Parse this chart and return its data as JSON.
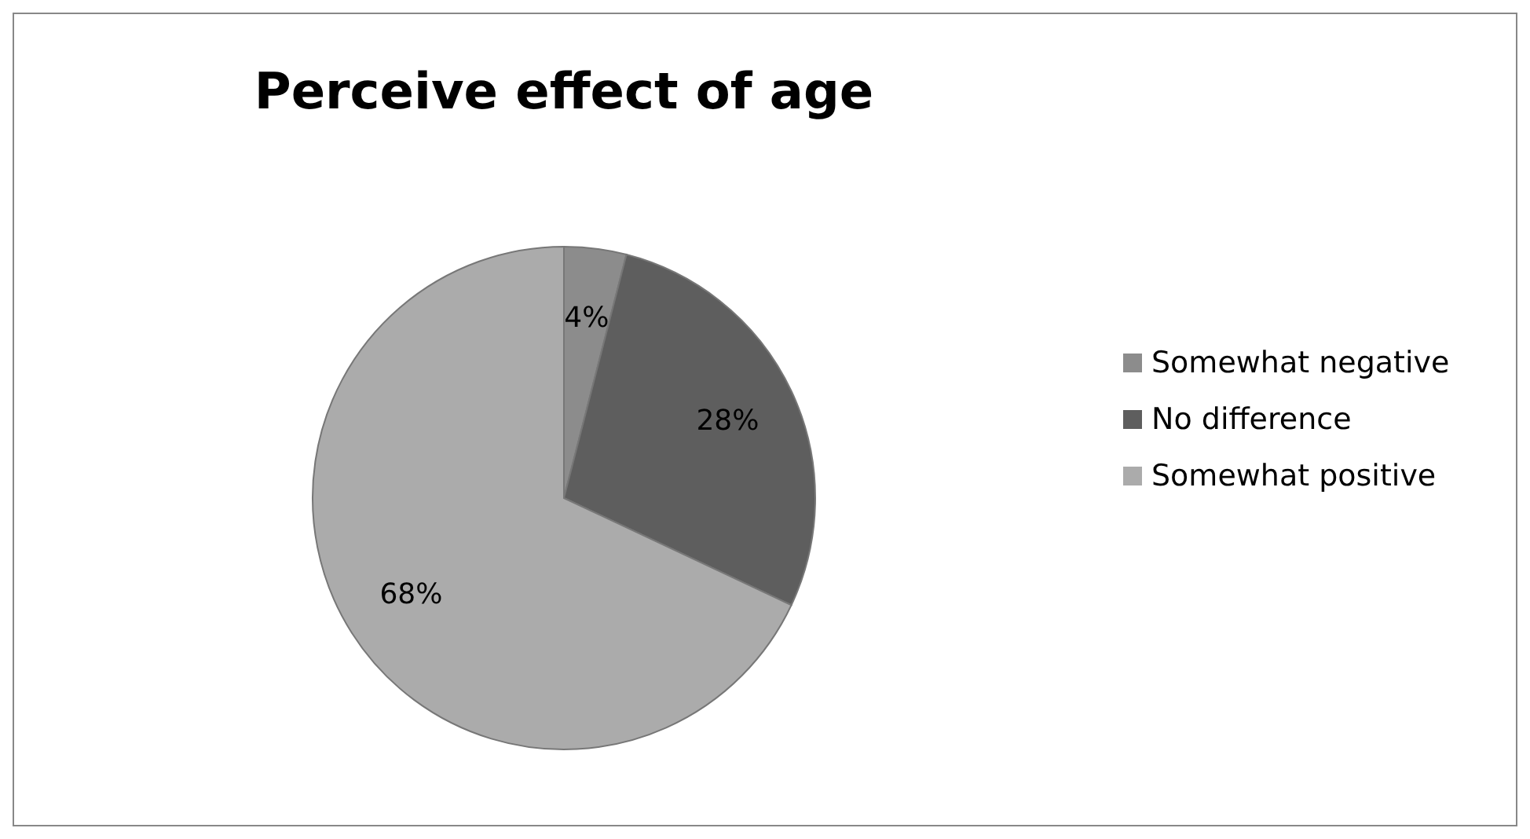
{
  "chart_data": {
    "type": "pie",
    "title": "Perceive effect of age",
    "categories": [
      "Somewhat negative",
      "No difference",
      "Somewhat positive"
    ],
    "values": [
      4,
      28,
      68
    ],
    "colors": [
      "#8c8c8c",
      "#5e5e5e",
      "#ababab"
    ],
    "value_labels": [
      "4%",
      "28%",
      "68%"
    ],
    "legend": "right"
  }
}
